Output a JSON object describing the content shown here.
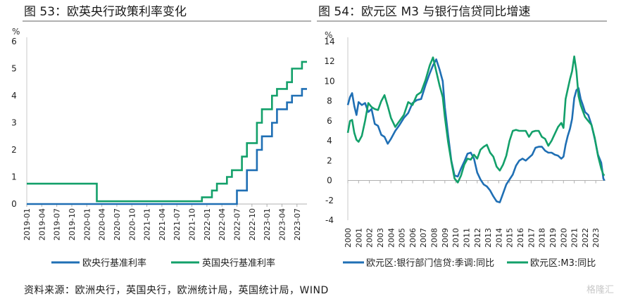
{
  "charts": [
    {
      "title": "图 53：欧英央行政策利率变化",
      "chart_data": {
        "type": "line",
        "step": true,
        "title": "图 53：欧英央行政策利率变化",
        "unit": "%",
        "ylim": [
          0,
          6
        ],
        "yticks": [
          0,
          1,
          2,
          3,
          4,
          5,
          6
        ],
        "x_tick_labels": [
          "2019-01",
          "2019-04",
          "2019-07",
          "2019-10",
          "2020-01",
          "2020-04",
          "2020-07",
          "2020-10",
          "2021-01",
          "2021-04",
          "2021-07",
          "2021-10",
          "2022-01",
          "2022-04",
          "2022-07",
          "2022-10",
          "2023-01",
          "2023-04",
          "2023-07"
        ],
        "legend_position": "bottom",
        "series": [
          {
            "name": "欧央行基准利率",
            "color": "#1f6fb4",
            "points": [
              [
                "2019-01",
                0
              ],
              [
                "2022-07",
                0
              ],
              [
                "2022-07",
                0.5
              ],
              [
                "2022-09",
                0.5
              ],
              [
                "2022-09",
                1.25
              ],
              [
                "2022-11",
                1.25
              ],
              [
                "2022-11",
                2
              ],
              [
                "2022-12",
                2
              ],
              [
                "2022-12",
                2.5
              ],
              [
                "2023-02",
                2.5
              ],
              [
                "2023-02",
                3
              ],
              [
                "2023-03",
                3
              ],
              [
                "2023-03",
                3.5
              ],
              [
                "2023-05",
                3.5
              ],
              [
                "2023-05",
                3.75
              ],
              [
                "2023-06",
                3.75
              ],
              [
                "2023-06",
                4
              ],
              [
                "2023-08",
                4
              ],
              [
                "2023-08",
                4.25
              ],
              [
                "2023-09",
                4.25
              ]
            ]
          },
          {
            "name": "英国央行基准利率",
            "color": "#13a06a",
            "points": [
              [
                "2019-01",
                0.75
              ],
              [
                "2020-03",
                0.75
              ],
              [
                "2020-03",
                0.25
              ],
              [
                "2020-03",
                0.1
              ],
              [
                "2021-12",
                0.1
              ],
              [
                "2021-12",
                0.25
              ],
              [
                "2022-02",
                0.25
              ],
              [
                "2022-02",
                0.5
              ],
              [
                "2022-03",
                0.5
              ],
              [
                "2022-03",
                0.75
              ],
              [
                "2022-05",
                0.75
              ],
              [
                "2022-05",
                1
              ],
              [
                "2022-06",
                1
              ],
              [
                "2022-06",
                1.25
              ],
              [
                "2022-08",
                1.25
              ],
              [
                "2022-08",
                1.75
              ],
              [
                "2022-09",
                1.75
              ],
              [
                "2022-09",
                2.25
              ],
              [
                "2022-11",
                2.25
              ],
              [
                "2022-11",
                3
              ],
              [
                "2022-12",
                3
              ],
              [
                "2022-12",
                3.5
              ],
              [
                "2023-02",
                3.5
              ],
              [
                "2023-02",
                4
              ],
              [
                "2023-03",
                4
              ],
              [
                "2023-03",
                4.25
              ],
              [
                "2023-05",
                4.25
              ],
              [
                "2023-05",
                4.5
              ],
              [
                "2023-06",
                4.5
              ],
              [
                "2023-06",
                5
              ],
              [
                "2023-08",
                5
              ],
              [
                "2023-08",
                5.25
              ],
              [
                "2023-09",
                5.25
              ]
            ]
          }
        ]
      }
    },
    {
      "title": "图 54：欧元区 M3 与银行信贷同比增速",
      "chart_data": {
        "type": "line",
        "title": "图 54：欧元区 M3 与银行信贷同比增速",
        "unit": "%",
        "ylim": [
          -4,
          14
        ],
        "yticks": [
          -4,
          -2,
          0,
          2,
          4,
          6,
          8,
          10,
          12,
          14
        ],
        "x_tick_labels": [
          "2000",
          "2001",
          "2002",
          "2003",
          "2004",
          "2005",
          "2006",
          "2007",
          "2008",
          "2009",
          "2010",
          "2011",
          "2012",
          "2013",
          "2014",
          "2015",
          "2016",
          "2017",
          "2018",
          "2019",
          "2020",
          "2021",
          "2022",
          "2023"
        ],
        "legend_position": "bottom",
        "series": [
          {
            "name": "欧元区:银行部门信贷:季调:同比",
            "color": "#1f6fb4",
            "points": [
              [
                2000.0,
                7.6
              ],
              [
                2000.2,
                8.4
              ],
              [
                2000.4,
                8.8
              ],
              [
                2000.6,
                7.5
              ],
              [
                2000.8,
                6.6
              ],
              [
                2001.0,
                7.9
              ],
              [
                2001.3,
                7.6
              ],
              [
                2001.6,
                7.8
              ],
              [
                2001.9,
                6.9
              ],
              [
                2002.2,
                7.2
              ],
              [
                2002.5,
                5.7
              ],
              [
                2002.8,
                5.5
              ],
              [
                2003.1,
                4.6
              ],
              [
                2003.4,
                4.4
              ],
              [
                2003.7,
                3.7
              ],
              [
                2004.0,
                4.2
              ],
              [
                2004.4,
                5.0
              ],
              [
                2004.8,
                5.6
              ],
              [
                2005.2,
                6.3
              ],
              [
                2005.6,
                6.8
              ],
              [
                2006.0,
                7.8
              ],
              [
                2006.4,
                8.1
              ],
              [
                2006.8,
                8.2
              ],
              [
                2007.2,
                9.6
              ],
              [
                2007.6,
                10.8
              ],
              [
                2007.9,
                11.6
              ],
              [
                2008.2,
                12.2
              ],
              [
                2008.5,
                11.2
              ],
              [
                2008.8,
                10.0
              ],
              [
                2009.0,
                7.4
              ],
              [
                2009.3,
                4.6
              ],
              [
                2009.6,
                2.0
              ],
              [
                2009.9,
                0.5
              ],
              [
                2010.2,
                0.4
              ],
              [
                2010.5,
                1.2
              ],
              [
                2010.8,
                1.9
              ],
              [
                2011.1,
                2.7
              ],
              [
                2011.4,
                2.8
              ],
              [
                2011.7,
                2.2
              ],
              [
                2012.0,
                0.8
              ],
              [
                2012.3,
                0.1
              ],
              [
                2012.6,
                -0.4
              ],
              [
                2012.9,
                -0.6
              ],
              [
                2013.2,
                -1.0
              ],
              [
                2013.5,
                -1.6
              ],
              [
                2013.8,
                -2.1
              ],
              [
                2014.1,
                -2.2
              ],
              [
                2014.4,
                -1.3
              ],
              [
                2014.7,
                -0.4
              ],
              [
                2015.0,
                0.1
              ],
              [
                2015.3,
                0.6
              ],
              [
                2015.6,
                1.5
              ],
              [
                2015.9,
                2.0
              ],
              [
                2016.2,
                2.2
              ],
              [
                2016.5,
                2.0
              ],
              [
                2016.8,
                2.3
              ],
              [
                2017.1,
                2.6
              ],
              [
                2017.4,
                3.3
              ],
              [
                2017.7,
                3.4
              ],
              [
                2018.0,
                3.4
              ],
              [
                2018.3,
                3.0
              ],
              [
                2018.6,
                2.8
              ],
              [
                2018.9,
                2.8
              ],
              [
                2019.2,
                2.6
              ],
              [
                2019.5,
                2.5
              ],
              [
                2019.8,
                2.2
              ],
              [
                2020.0,
                2.4
              ],
              [
                2020.2,
                3.6
              ],
              [
                2020.4,
                4.5
              ],
              [
                2020.6,
                5.2
              ],
              [
                2020.8,
                6.2
              ],
              [
                2021.0,
                8.3
              ],
              [
                2021.2,
                9.1
              ],
              [
                2021.4,
                9.3
              ],
              [
                2021.6,
                8.2
              ],
              [
                2021.8,
                7.6
              ],
              [
                2022.0,
                6.9
              ],
              [
                2022.3,
                6.6
              ],
              [
                2022.6,
                5.6
              ],
              [
                2022.9,
                4.2
              ],
              [
                2023.2,
                2.6
              ],
              [
                2023.5,
                1.8
              ],
              [
                2023.7,
                0.2
              ],
              [
                2023.8,
                0.0
              ]
            ]
          },
          {
            "name": "欧元区:M3:同比",
            "color": "#13a06a",
            "points": [
              [
                2000.0,
                4.8
              ],
              [
                2000.2,
                6.0
              ],
              [
                2000.4,
                6.1
              ],
              [
                2000.6,
                4.8
              ],
              [
                2000.8,
                4.1
              ],
              [
                2001.0,
                3.9
              ],
              [
                2001.3,
                4.5
              ],
              [
                2001.6,
                6.0
              ],
              [
                2001.9,
                7.8
              ],
              [
                2002.2,
                7.4
              ],
              [
                2002.5,
                7.2
              ],
              [
                2002.8,
                7.1
              ],
              [
                2003.1,
                8.0
              ],
              [
                2003.4,
                8.6
              ],
              [
                2003.7,
                7.5
              ],
              [
                2004.0,
                6.3
              ],
              [
                2004.4,
                5.4
              ],
              [
                2004.8,
                6.0
              ],
              [
                2005.2,
                6.6
              ],
              [
                2005.6,
                7.9
              ],
              [
                2006.0,
                7.6
              ],
              [
                2006.4,
                8.6
              ],
              [
                2006.8,
                8.9
              ],
              [
                2007.2,
                10.1
              ],
              [
                2007.6,
                11.6
              ],
              [
                2007.9,
                12.4
              ],
              [
                2008.2,
                11.0
              ],
              [
                2008.5,
                9.6
              ],
              [
                2008.8,
                8.4
              ],
              [
                2009.0,
                6.4
              ],
              [
                2009.3,
                3.9
              ],
              [
                2009.6,
                1.9
              ],
              [
                2009.9,
                0.2
              ],
              [
                2010.2,
                -0.2
              ],
              [
                2010.5,
                0.5
              ],
              [
                2010.8,
                1.6
              ],
              [
                2011.1,
                2.2
              ],
              [
                2011.4,
                2.1
              ],
              [
                2011.7,
                2.6
              ],
              [
                2012.0,
                2.2
              ],
              [
                2012.3,
                3.1
              ],
              [
                2012.6,
                3.4
              ],
              [
                2012.9,
                3.6
              ],
              [
                2013.2,
                2.8
              ],
              [
                2013.5,
                2.4
              ],
              [
                2013.8,
                1.4
              ],
              [
                2014.1,
                1.0
              ],
              [
                2014.4,
                1.6
              ],
              [
                2014.7,
                2.5
              ],
              [
                2015.0,
                4.0
              ],
              [
                2015.3,
                5.0
              ],
              [
                2015.6,
                5.1
              ],
              [
                2015.9,
                5.0
              ],
              [
                2016.2,
                5.0
              ],
              [
                2016.5,
                5.0
              ],
              [
                2016.8,
                4.4
              ],
              [
                2017.1,
                4.9
              ],
              [
                2017.4,
                5.0
              ],
              [
                2017.7,
                5.0
              ],
              [
                2018.0,
                4.4
              ],
              [
                2018.3,
                4.2
              ],
              [
                2018.6,
                3.5
              ],
              [
                2018.9,
                4.0
              ],
              [
                2019.2,
                4.7
              ],
              [
                2019.5,
                5.4
              ],
              [
                2019.8,
                5.8
              ],
              [
                2020.0,
                5.3
              ],
              [
                2020.2,
                8.2
              ],
              [
                2020.4,
                9.2
              ],
              [
                2020.6,
                10.2
              ],
              [
                2020.8,
                11.0
              ],
              [
                2021.0,
                12.5
              ],
              [
                2021.2,
                11.0
              ],
              [
                2021.4,
                8.5
              ],
              [
                2021.6,
                7.6
              ],
              [
                2021.8,
                7.0
              ],
              [
                2022.0,
                6.4
              ],
              [
                2022.3,
                6.0
              ],
              [
                2022.6,
                5.6
              ],
              [
                2022.9,
                4.3
              ],
              [
                2023.2,
                2.5
              ],
              [
                2023.5,
                1.2
              ],
              [
                2023.7,
                0.6
              ],
              [
                2023.8,
                0.5
              ]
            ]
          }
        ]
      }
    }
  ],
  "source_text": "资料来源：欧洲央行，英国央行，欧洲统计局，英国统计局，WIND",
  "watermark_text": "格隆汇"
}
